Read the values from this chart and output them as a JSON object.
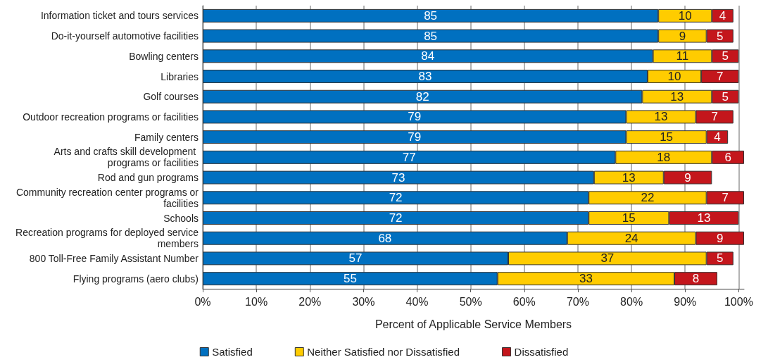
{
  "chart_data": {
    "type": "bar",
    "orientation": "horizontal",
    "stacked": true,
    "xlabel": "Percent of Applicable Service Members",
    "categories": [
      "Information ticket and tours services",
      "Do-it-yourself automotive facilities",
      "Bowling centers",
      "Libraries",
      "Golf courses",
      "Outdoor recreation programs or facilities",
      "Family centers",
      "Arts and crafts skill development programs or facilities",
      "Rod and gun programs",
      "Community recreation center programs or facilities",
      "Schools",
      "Recreation programs for deployed service members",
      "800 Toll-Free Family Assistant Number",
      "Flying programs (aero clubs)"
    ],
    "series": [
      {
        "name": "Satisfied",
        "color": "#0070c0",
        "values": [
          85,
          85,
          84,
          83,
          82,
          79,
          79,
          77,
          73,
          72,
          72,
          68,
          57,
          55
        ],
        "value_labels": [
          "85",
          "85",
          "84",
          "83",
          "82",
          "79",
          "79",
          "77",
          "73",
          "72",
          "72",
          "68",
          "57",
          "55"
        ]
      },
      {
        "name": "Neither Satisfied nor Dissatisfied",
        "color": "#ffcc00",
        "values": [
          10,
          9,
          11,
          10,
          13,
          13,
          15,
          18,
          13,
          22,
          15,
          24,
          37,
          33
        ],
        "value_labels": [
          "10",
          "9",
          "11",
          "10",
          "13",
          "13",
          "15",
          "18",
          "13",
          "22",
          "15",
          "24",
          "37",
          "33"
        ]
      },
      {
        "name": "Dissatisfied",
        "color": "#c4161c",
        "values": [
          4,
          5,
          5,
          7,
          5,
          7,
          4,
          6,
          9,
          7,
          13,
          9,
          5,
          8
        ],
        "value_labels": [
          "4",
          "5",
          "5",
          "7",
          "5",
          "7",
          "4",
          "6",
          "9",
          "7",
          "13",
          "9",
          "5",
          "8"
        ]
      }
    ],
    "xlim": [
      0,
      101
    ],
    "xticks": [
      {
        "value": 0,
        "label": "0%"
      },
      {
        "value": 10,
        "label": "10%"
      },
      {
        "value": 20,
        "label": "20%"
      },
      {
        "value": 30,
        "label": "30%"
      },
      {
        "value": 40,
        "label": "40%"
      },
      {
        "value": 50,
        "label": "50%"
      },
      {
        "value": 60,
        "label": "60%"
      },
      {
        "value": 70,
        "label": "70%"
      },
      {
        "value": 80,
        "label": "80%"
      },
      {
        "value": 90,
        "label": "90%"
      },
      {
        "value": 100,
        "label": "100%"
      }
    ],
    "grid": "x",
    "legend": "bottom"
  }
}
